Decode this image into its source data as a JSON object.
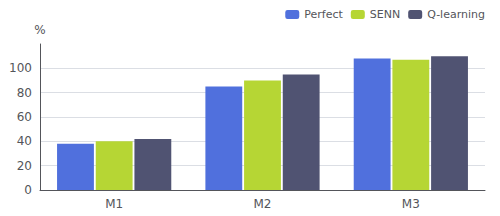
{
  "chart_data": {
    "type": "bar",
    "categories": [
      "M1",
      "M2",
      "M3"
    ],
    "series": [
      {
        "name": "Perfect",
        "values": [
          38,
          85,
          108
        ]
      },
      {
        "name": "SENN",
        "values": [
          40,
          90,
          107
        ]
      },
      {
        "name": "Q-learning",
        "values": [
          42,
          95,
          110
        ]
      }
    ],
    "ylabel": "%",
    "ylim": [
      0,
      120
    ],
    "yticks": [
      0,
      20,
      40,
      60,
      80,
      100
    ],
    "grid": true,
    "legend": "upper right"
  }
}
